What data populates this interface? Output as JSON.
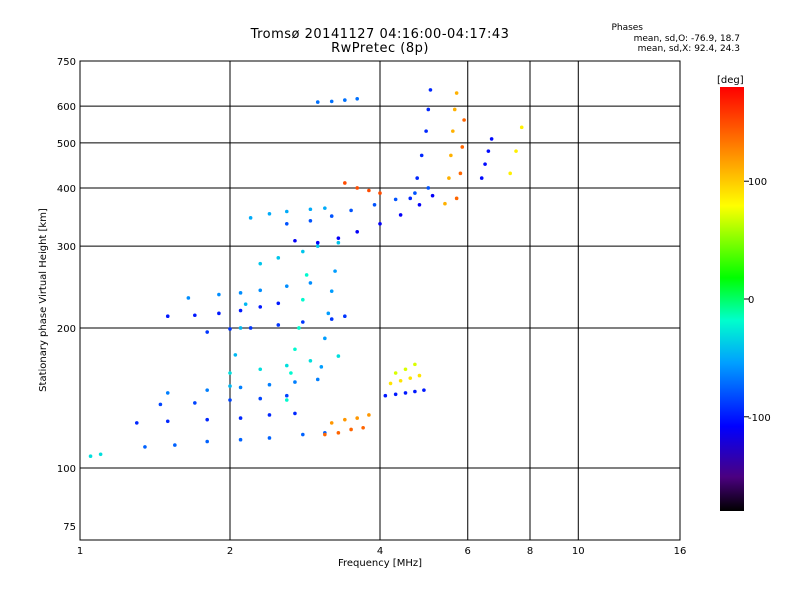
{
  "header": {
    "title_line1": "Tromsø 20141127 04:16:00-04:17:43",
    "title_line2": "RwPretec (8p)",
    "phase_title": "Phases",
    "phase_o": "mean, sd,O: -76.9, 18.7",
    "phase_x": "mean, sd,X:  92.4, 24.3"
  },
  "colorbar": {
    "unit": "[deg]",
    "ticks": [
      "100",
      "0",
      "-100"
    ],
    "tick_values": [
      100,
      0,
      -100
    ],
    "range": [
      -180,
      180
    ]
  },
  "chart_data": {
    "type": "scatter",
    "xlabel": "Frequency [MHz]",
    "ylabel": "Stationary phase Virtual Height [km]",
    "x_scale": "log",
    "y_scale": "log",
    "xlim": [
      1,
      16
    ],
    "ylim": [
      70,
      750
    ],
    "x_ticks": [
      "1",
      "2",
      "4",
      "6",
      "8",
      "10",
      "16"
    ],
    "x_tick_values": [
      1,
      2,
      4,
      6,
      8,
      10,
      16
    ],
    "y_ticks": [
      "750",
      "600",
      "500",
      "400",
      "300",
      "200",
      "100",
      "75"
    ],
    "y_tick_values": [
      750,
      600,
      500,
      400,
      300,
      200,
      100,
      75
    ],
    "grid": true,
    "traces": [
      {
        "x": [
          1.5,
          1.7,
          1.9,
          2.1,
          2.3,
          2.5
        ],
        "y": [
          212,
          213,
          215,
          218,
          222,
          226
        ],
        "phase": -100
      },
      {
        "x": [
          1.65,
          1.9,
          2.1,
          2.3,
          2.6,
          2.9
        ],
        "y": [
          232,
          236,
          238,
          241,
          246,
          250
        ],
        "phase": -60
      },
      {
        "x": [
          1.8,
          2.0,
          2.2,
          2.5,
          2.8,
          3.2,
          3.4
        ],
        "y": [
          196,
          199,
          200,
          203,
          206,
          209,
          212
        ],
        "phase": -90
      },
      {
        "x": [
          2.3,
          2.5,
          2.8,
          3.0,
          3.3
        ],
        "y": [
          275,
          283,
          292,
          300,
          305
        ],
        "phase": -40
      },
      {
        "x": [
          2.7,
          3.0,
          3.3,
          3.6,
          4.0,
          4.4,
          4.8,
          5.1
        ],
        "y": [
          308,
          305,
          312,
          322,
          335,
          350,
          368,
          385
        ],
        "phase": -110
      },
      {
        "x": [
          2.6,
          2.9,
          3.2,
          3.5,
          3.9,
          4.3,
          4.7,
          5.0
        ],
        "y": [
          335,
          340,
          348,
          358,
          368,
          378,
          390,
          400
        ],
        "phase": -80
      },
      {
        "x": [
          2.2,
          2.4,
          2.6,
          2.9,
          3.1
        ],
        "y": [
          345,
          352,
          356,
          360,
          362
        ],
        "phase": -50
      },
      {
        "x": [
          4.6,
          4.75,
          4.85,
          4.95,
          5.0,
          5.05
        ],
        "y": [
          380,
          420,
          470,
          530,
          590,
          650
        ],
        "phase": -95
      },
      {
        "x": [
          5.4,
          5.5,
          5.55,
          5.6,
          5.65,
          5.7
        ],
        "y": [
          370,
          420,
          470,
          530,
          590,
          640
        ],
        "phase": 110
      },
      {
        "x": [
          5.7,
          5.8,
          5.85,
          5.9
        ],
        "y": [
          380,
          430,
          490,
          560
        ],
        "phase": 140
      },
      {
        "x": [
          6.4,
          6.5,
          6.6,
          6.7
        ],
        "y": [
          420,
          450,
          480,
          510
        ],
        "phase": -105
      },
      {
        "x": [
          7.3,
          7.5,
          7.7
        ],
        "y": [
          430,
          480,
          540
        ],
        "phase": 85
      },
      {
        "x": [
          1.35,
          1.55,
          1.8,
          2.1,
          2.4,
          2.8,
          3.1
        ],
        "y": [
          111,
          112,
          114,
          115,
          116,
          118,
          119
        ],
        "phase": -75
      },
      {
        "x": [
          1.3,
          1.5,
          1.8,
          2.1,
          2.4,
          2.7
        ],
        "y": [
          125,
          126,
          127,
          128,
          130,
          131
        ],
        "phase": -95
      },
      {
        "x": [
          1.45,
          1.7,
          2.0,
          2.3,
          2.6
        ],
        "y": [
          137,
          138,
          140,
          141,
          143
        ],
        "phase": -85
      },
      {
        "x": [
          1.5,
          1.8,
          2.1,
          2.4,
          2.7,
          3.0
        ],
        "y": [
          145,
          147,
          149,
          151,
          153,
          155
        ],
        "phase": -65
      },
      {
        "x": [
          2.0,
          2.3,
          2.6,
          2.9,
          3.3
        ],
        "y": [
          160,
          163,
          166,
          170,
          174
        ],
        "phase": -30
      },
      {
        "x": [
          3.1,
          3.3,
          3.5,
          3.7
        ],
        "y": [
          118,
          119,
          121,
          122
        ],
        "phase": 140
      },
      {
        "x": [
          3.2,
          3.4,
          3.6,
          3.8
        ],
        "y": [
          125,
          127,
          128,
          130
        ],
        "phase": 120
      },
      {
        "x": [
          4.1,
          4.3,
          4.5,
          4.7,
          4.9
        ],
        "y": [
          143,
          144,
          145,
          146,
          147
        ],
        "phase": -100
      },
      {
        "x": [
          4.2,
          4.4,
          4.6,
          4.8
        ],
        "y": [
          152,
          154,
          156,
          158
        ],
        "phase": 90
      },
      {
        "x": [
          4.3,
          4.5,
          4.7
        ],
        "y": [
          160,
          163,
          167
        ],
        "phase": 70
      },
      {
        "x": [
          2.6,
          2.65,
          2.7,
          2.75,
          2.8,
          2.85
        ],
        "y": [
          140,
          160,
          180,
          200,
          230,
          260
        ],
        "phase": -20
      },
      {
        "x": [
          3.05,
          3.1,
          3.15,
          3.2,
          3.25
        ],
        "y": [
          165,
          190,
          215,
          240,
          265
        ],
        "phase": -55
      },
      {
        "x": [
          2.0,
          2.05,
          2.1,
          2.15
        ],
        "y": [
          150,
          175,
          200,
          225
        ],
        "phase": -45
      },
      {
        "x": [
          3.4,
          3.6,
          3.8,
          4.0
        ],
        "y": [
          410,
          400,
          395,
          390
        ],
        "phase": 150
      },
      {
        "x": [
          3.0,
          3.2,
          3.4,
          3.6
        ],
        "y": [
          612,
          614,
          618,
          622
        ],
        "phase": -70
      },
      {
        "x": [
          1.05,
          1.1
        ],
        "y": [
          106,
          107
        ],
        "phase": -30
      }
    ]
  }
}
